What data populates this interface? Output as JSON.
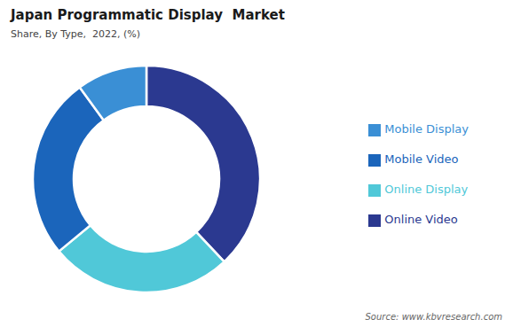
{
  "chart_data": {
    "type": "pie",
    "title": "Japan Programmatic Display  Market",
    "subtitle": "Share, By Type,  2022, (%)",
    "annotations": [
      "Source: www.kbvresearch.com"
    ],
    "categories": [
      "Online Video",
      "Online Display",
      "Mobile Video",
      "Mobile Display"
    ],
    "values": [
      38,
      26,
      26,
      10
    ],
    "colors": [
      "#2B3990",
      "#50C8D8",
      "#1B65BB",
      "#3A8FD5"
    ],
    "legend": "right"
  }
}
